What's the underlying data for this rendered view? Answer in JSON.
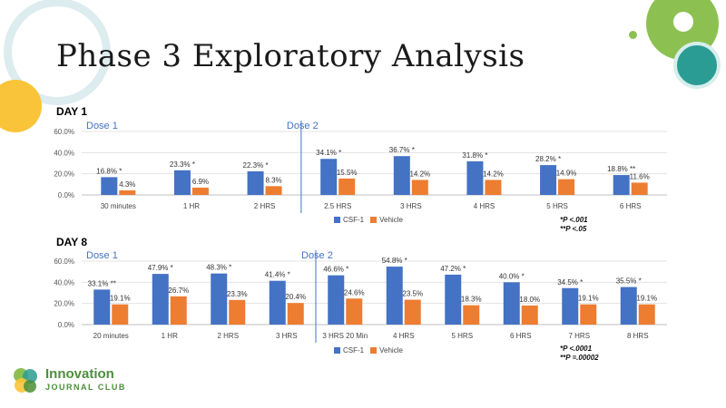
{
  "slide": {
    "title": "Phase 3 Exploratory Analysis",
    "logo": {
      "line1": "Innovation",
      "line2": "JOURNAL CLUB"
    },
    "colors": {
      "csf": "#4472c4",
      "vehicle": "#ed7d31",
      "accent_green": "#8cc152",
      "accent_teal": "#2b9c93",
      "accent_yellow": "#f9c43a"
    }
  },
  "chart_data": [
    {
      "type": "bar",
      "title": "DAY 1",
      "categories": [
        "30 minutes",
        "1 HR",
        "2 HRS",
        "2.5 HRS",
        "3 HRS",
        "4 HRS",
        "5 HRS",
        "6 HRS"
      ],
      "series": [
        {
          "name": "CSF-1",
          "values": [
            16.8,
            23.3,
            22.3,
            34.1,
            36.7,
            31.8,
            28.2,
            18.8
          ],
          "labels": [
            "16.8% *",
            "23.3% *",
            "22.3% *",
            "34.1% *",
            "36.7% *",
            "31.8% *",
            "28.2% *",
            "18.8% **"
          ]
        },
        {
          "name": "Vehicle",
          "values": [
            4.3,
            6.9,
            8.3,
            15.5,
            14.2,
            14.2,
            14.9,
            11.6
          ],
          "labels": [
            "4.3%",
            "6.9%",
            "8.3%",
            "15.5%",
            "14.2%",
            "14.2%",
            "14.9%",
            "11.6%"
          ]
        }
      ],
      "yticks": [
        "0.0%",
        "20.0%",
        "40.0%",
        "60.0%"
      ],
      "ylim": [
        0,
        60
      ],
      "dose_labels": [
        "Dose 1",
        "Dose 2"
      ],
      "dose2_after_category": "2 HRS",
      "footnotes": [
        "*P <.001",
        "**P <.05"
      ]
    },
    {
      "type": "bar",
      "title": "DAY 8",
      "categories": [
        "20 minutes",
        "1 HR",
        "2 HRS",
        "3 HRS",
        "3 HRS 20 Min",
        "4 HRS",
        "5 HRS",
        "6 HRS",
        "7 HRS",
        "8 HRS"
      ],
      "series": [
        {
          "name": "CSF-1",
          "values": [
            33.1,
            47.9,
            48.3,
            41.4,
            46.6,
            54.8,
            47.2,
            40.0,
            34.5,
            35.5
          ],
          "labels": [
            "33.1% **",
            "47.9% *",
            "48.3% *",
            "41.4% *",
            "46.6% *",
            "54.8% *",
            "47.2% *",
            "40.0% *",
            "34.5% *",
            "35.5% *"
          ]
        },
        {
          "name": "Vehicle",
          "values": [
            19.1,
            26.7,
            23.3,
            20.4,
            24.6,
            23.5,
            18.3,
            18.0,
            19.1,
            19.1
          ],
          "labels": [
            "19.1%",
            "26.7%",
            "23.3%",
            "20.4%",
            "24.6%",
            "23.5%",
            "18.3%",
            "18.0%",
            "19.1%",
            "19.1%"
          ]
        }
      ],
      "yticks": [
        "0.0%",
        "20.0%",
        "40.0%",
        "60.0%"
      ],
      "ylim": [
        0,
        60
      ],
      "dose_labels": [
        "Dose 1",
        "Dose 2"
      ],
      "dose2_after_category": "3 HRS",
      "footnotes": [
        "*P <.0001",
        "**P =.00002"
      ]
    }
  ]
}
